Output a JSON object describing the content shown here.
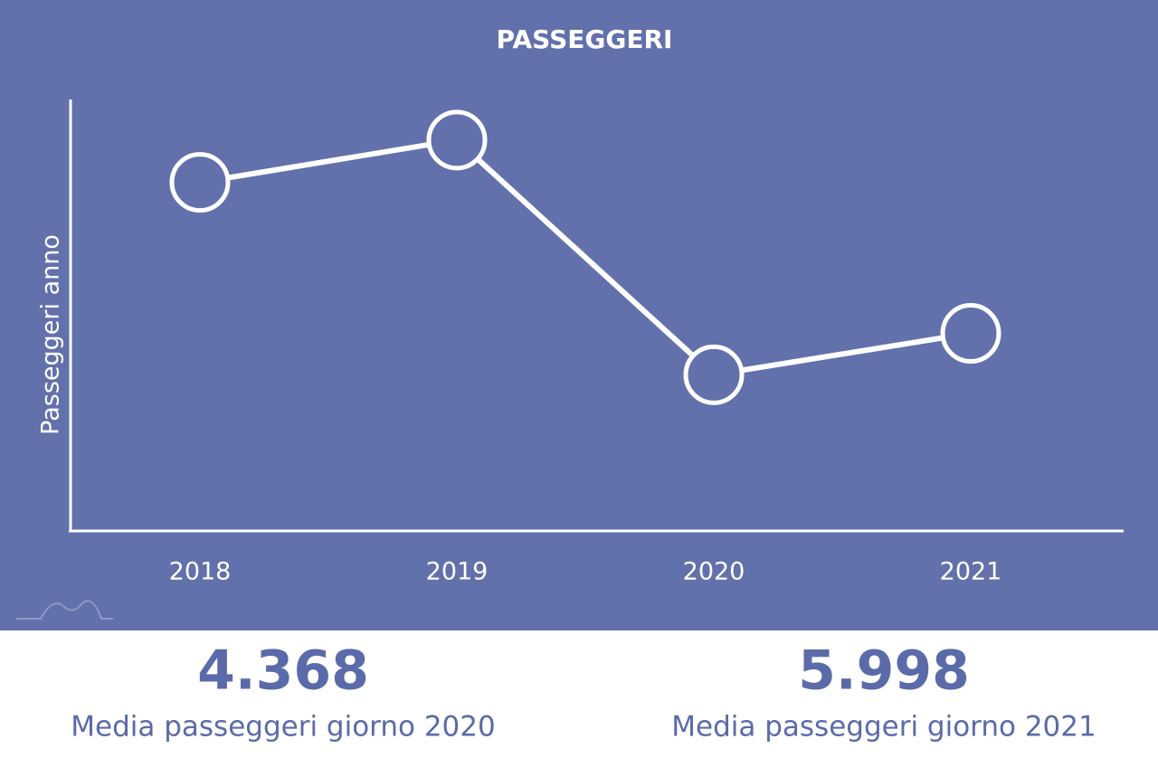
{
  "chart_data": {
    "type": "line",
    "title": "PASSEGGERI",
    "y_label": "Passeggeri anno",
    "categories": [
      "2018",
      "2019",
      "2020",
      "2021"
    ],
    "values": [
      4040000,
      4530000,
      1810000,
      2290000
    ],
    "ylim": [
      0,
      5000000
    ],
    "color": "#ffffff"
  },
  "stats": [
    {
      "value": "4.368",
      "label": "Media passeggeri giorno 2020"
    },
    {
      "value": "5.998",
      "label": "Media passeggeri giorno 2021"
    }
  ]
}
